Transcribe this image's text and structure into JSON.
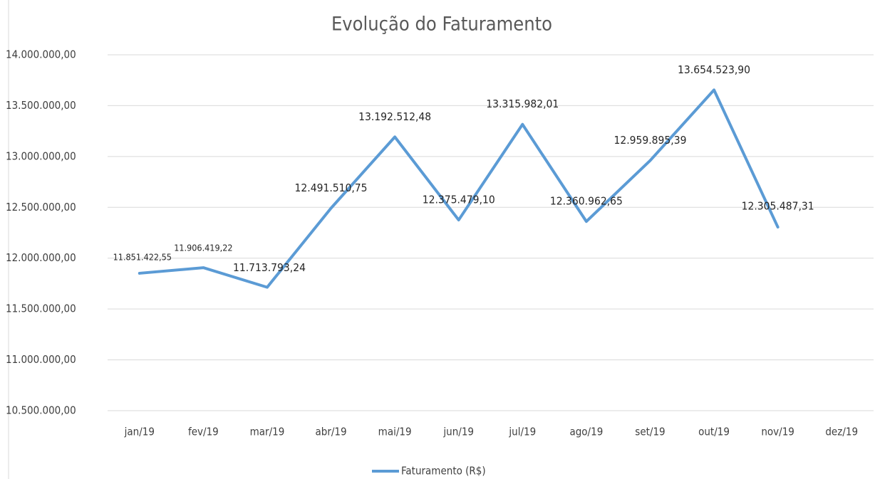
{
  "chart_data": {
    "type": "line",
    "title": "Evolução do Faturamento",
    "categories": [
      "jan/19",
      "fev/19",
      "mar/19",
      "abr/19",
      "mai/19",
      "jun/19",
      "jul/19",
      "ago/19",
      "set/19",
      "out/19",
      "nov/19",
      "dez/19"
    ],
    "series": [
      {
        "name": "Faturamento (R$)",
        "color": "#5b9bd5",
        "values": [
          11851422.55,
          11906419.22,
          11713793.24,
          12491510.75,
          13192512.48,
          12375479.1,
          13315982.01,
          12360962.65,
          12959895.39,
          13654523.9,
          12305487.31,
          null
        ],
        "value_labels": [
          "11.851.422,55",
          "11.906.419,22",
          "11.713.793,24",
          "12.491.510,75",
          "13.192.512,48",
          "12.375.479,10",
          "13.315.982,01",
          "12.360.962,65",
          "12.959.895,39",
          "13.654.523,90",
          "12.305.487,31",
          null
        ]
      }
    ],
    "ylim": [
      10500000,
      14000000
    ],
    "yticks": [
      {
        "value": 10500000,
        "label": "10.500.000,00"
      },
      {
        "value": 11000000,
        "label": "11.000.000,00"
      },
      {
        "value": 11500000,
        "label": "11.500.000,00"
      },
      {
        "value": 12000000,
        "label": "12.000.000,00"
      },
      {
        "value": 12500000,
        "label": "12.500.000,00"
      },
      {
        "value": 13000000,
        "label": "13.000.000,00"
      },
      {
        "value": 13500000,
        "label": "13.500.000,00"
      },
      {
        "value": 14000000,
        "label": "14.000.000,00"
      }
    ],
    "grid": true,
    "legend": "bottom"
  }
}
